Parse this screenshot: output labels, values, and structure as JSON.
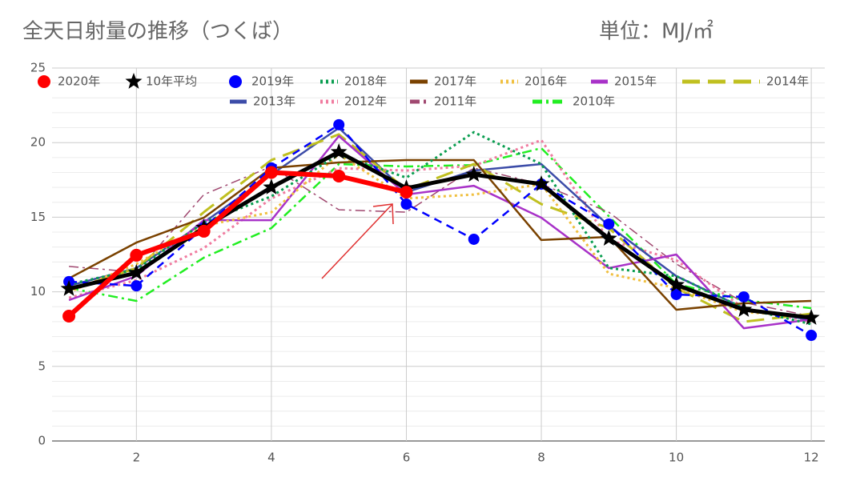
{
  "chart_data": {
    "type": "line",
    "title": "全天日射量の推移（つくば）",
    "unit": "単位：MJ/㎡",
    "x": [
      1,
      2,
      3,
      4,
      5,
      6,
      7,
      8,
      9,
      10,
      11,
      12
    ],
    "xlim": [
      0.75,
      12.2
    ],
    "xticks": [
      2,
      4,
      6,
      8,
      10,
      12
    ],
    "ylim": [
      0,
      25
    ],
    "yticks": [
      0,
      5,
      10,
      15,
      20,
      25
    ],
    "minor_yticks": [
      1,
      2,
      3,
      4,
      6,
      7,
      8,
      9,
      11,
      12,
      13,
      14,
      16,
      17,
      18,
      19,
      21,
      22,
      23,
      24
    ],
    "grid": true,
    "legend": "top",
    "series": [
      {
        "name": "2020年",
        "color": "#ff0000",
        "dash": "solid",
        "marker": "circle",
        "width": 6,
        "values": [
          8.37,
          12.45,
          14.06,
          18.0,
          17.76,
          16.68,
          null,
          null,
          null,
          null,
          null,
          null
        ]
      },
      {
        "name": "10年平均",
        "color": "#000000",
        "dash": "solid",
        "marker": "star",
        "width": 5,
        "values": [
          10.2,
          11.27,
          14.3,
          17.0,
          19.37,
          16.95,
          17.86,
          17.22,
          13.57,
          10.46,
          8.8,
          8.26
        ]
      },
      {
        "name": "2019年",
        "color": "#0000ff",
        "dash": "dashed",
        "marker": "circle",
        "width": 2.5,
        "values": [
          10.68,
          10.4,
          14.3,
          18.3,
          21.2,
          15.88,
          13.52,
          17.22,
          14.54,
          9.82,
          9.66,
          7.08
        ]
      },
      {
        "name": "2018年",
        "color": "#0a9e50",
        "dash": "dotted",
        "width": 3,
        "values": [
          10.5,
          11.5,
          14.65,
          16.4,
          19.2,
          17.65,
          20.7,
          18.56,
          11.6,
          11.05,
          8.9,
          7.83
        ]
      },
      {
        "name": "2017年",
        "color": "#7a4200",
        "dash": "solid",
        "width": 2.5,
        "values": [
          10.9,
          13.3,
          14.97,
          18.3,
          18.67,
          18.83,
          18.83,
          13.47,
          13.68,
          8.8,
          9.23,
          9.39
        ]
      },
      {
        "name": "2016年",
        "color": "#f0c040",
        "dash": "dotted",
        "width": 3,
        "values": [
          9.98,
          11.86,
          14.43,
          15.34,
          19.2,
          16.26,
          16.52,
          17.22,
          11.21,
          10.25,
          8.64,
          8.37
        ]
      },
      {
        "name": "2015年",
        "color": "#a832c8",
        "dash": "solid",
        "width": 2.5,
        "values": [
          9.44,
          11.05,
          14.8,
          14.8,
          20.44,
          16.52,
          17.11,
          14.97,
          11.59,
          12.5,
          7.56,
          8.15
        ]
      },
      {
        "name": "2014年",
        "color": "#c0c020",
        "dash": "longdash",
        "width": 3,
        "values": [
          10.09,
          11.59,
          15.34,
          18.83,
          20.55,
          16.85,
          18.56,
          15.88,
          14.27,
          10.25,
          7.99,
          8.53
        ]
      },
      {
        "name": "2013年",
        "color": "#3c4ca8",
        "dash": "solid",
        "width": 2.5,
        "values": [
          10.4,
          11.59,
          14.65,
          17.86,
          20.98,
          16.68,
          18.13,
          18.56,
          14.43,
          11.05,
          8.9,
          8.1
        ]
      },
      {
        "name": "2012年",
        "color": "#f07ca0",
        "dash": "dotted",
        "width": 3,
        "values": [
          9.6,
          10.78,
          12.93,
          16.26,
          18.29,
          18.13,
          18.45,
          20.17,
          13.47,
          12.12,
          8.9,
          7.99
        ]
      },
      {
        "name": "2011年",
        "color": "#a04870",
        "dash": "dashdot",
        "width": 1.5,
        "values": [
          11.7,
          11.32,
          16.52,
          18.4,
          15.5,
          15.34,
          18.3,
          17.22,
          15.34,
          11.86,
          9.28,
          8.37
        ]
      },
      {
        "name": "2010年",
        "color": "#22ee22",
        "dash": "dashdot",
        "width": 2.5,
        "values": [
          10.25,
          9.39,
          12.29,
          14.27,
          18.56,
          18.4,
          18.5,
          19.63,
          15.07,
          10.52,
          9.44,
          8.9
        ]
      }
    ]
  }
}
